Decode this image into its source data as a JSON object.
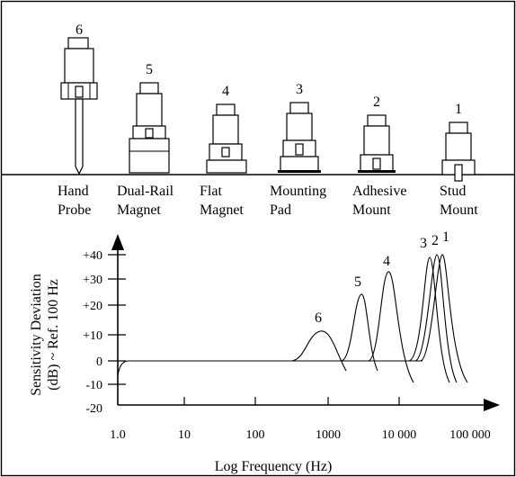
{
  "mounts": [
    {
      "number": "6",
      "line1": "Hand",
      "line2": "Probe"
    },
    {
      "number": "5",
      "line1": "Dual-Rail",
      "line2": "Magnet"
    },
    {
      "number": "4",
      "line1": "Flat",
      "line2": "Magnet"
    },
    {
      "number": "3",
      "line1": "Mounting",
      "line2": "Pad"
    },
    {
      "number": "2",
      "line1": "Adhesive",
      "line2": "Mount"
    },
    {
      "number": "1",
      "line1": "Stud",
      "line2": "Mount"
    }
  ],
  "graph": {
    "ylabel_line1": "Sensitivity Deviation",
    "ylabel_line2": "(dB) ~ Ref. 100 Hz",
    "xlabel": "Log Frequency (Hz)",
    "y_ticks": [
      "+40",
      "+30",
      "+20",
      "+10",
      "0",
      "-10",
      "-20"
    ],
    "x_ticks": [
      "1.0",
      "10",
      "100",
      "1000",
      "10 000",
      "100 000"
    ],
    "curve_labels": [
      "6",
      "5",
      "4",
      "3",
      "2",
      "1"
    ]
  }
}
